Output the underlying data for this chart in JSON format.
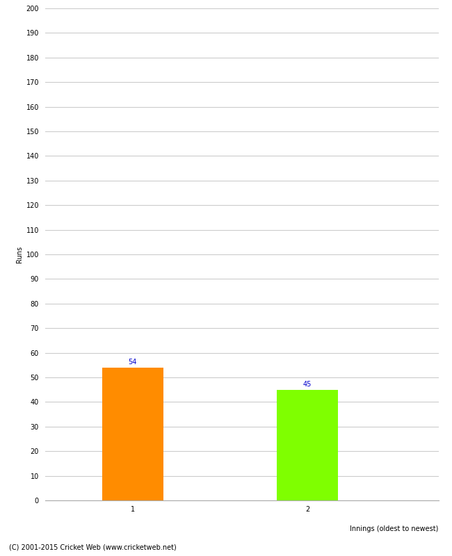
{
  "categories": [
    "1",
    "2"
  ],
  "values": [
    54,
    45
  ],
  "bar_colors": [
    "#FF8C00",
    "#7FFF00"
  ],
  "xlabel": "Innings (oldest to newest)",
  "ylabel": "Runs",
  "ylim": [
    0,
    200
  ],
  "yticks": [
    0,
    10,
    20,
    30,
    40,
    50,
    60,
    70,
    80,
    90,
    100,
    110,
    120,
    130,
    140,
    150,
    160,
    170,
    180,
    190,
    200
  ],
  "label_color": "#0000CC",
  "label_fontsize": 7,
  "axis_label_fontsize": 7,
  "tick_fontsize": 7,
  "footer": "(C) 2001-2015 Cricket Web (www.cricketweb.net)",
  "footer_fontsize": 7,
  "background_color": "#ffffff",
  "grid_color": "#cccccc",
  "bar_width": 0.35,
  "x_positions": [
    1,
    2
  ],
  "xlim": [
    0.5,
    2.75
  ]
}
